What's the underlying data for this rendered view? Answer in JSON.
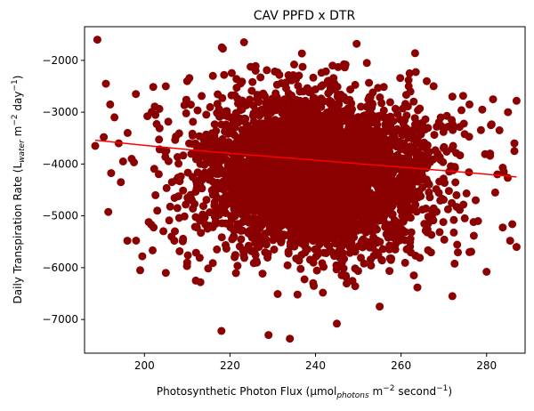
{
  "chart_data": {
    "type": "scatter",
    "title": "CAV PPFD x DTR",
    "xlabel": {
      "main": "Photosynthetic Photon Flux (μmol",
      "sub": "photons",
      "mid": " m",
      "sup1": "−2",
      "tail": " second",
      "sup2": "−1",
      "end": ")"
    },
    "ylabel": {
      "main": "Daily Transpiration Rate (L",
      "sub": "water",
      "mid": " m",
      "sup1": "−2",
      "tail": " day",
      "sup2": "−1",
      "end": ")"
    },
    "xlim": [
      186,
      289
    ],
    "ylim": [
      -7650,
      -1350
    ],
    "xticks": [
      200,
      220,
      240,
      260,
      280
    ],
    "yticks": [
      -7000,
      -6000,
      -5000,
      -4000,
      -3000,
      -2000
    ],
    "xtick_labels": [
      "200",
      "220",
      "240",
      "260",
      "280"
    ],
    "ytick_labels": [
      "−7000",
      "−6000",
      "−5000",
      "−4000",
      "−3000",
      "−2000"
    ],
    "grid": false,
    "point_color": "#8b0000",
    "line_color": "#ff0000",
    "cluster": {
      "x_mean": 240,
      "x_sd": 14,
      "y_mean": -4200,
      "y_sd": 750,
      "count": 3800
    },
    "outliers": [
      [
        189,
        -1600
      ],
      [
        188.5,
        -3650
      ],
      [
        191,
        -2450
      ],
      [
        190.5,
        -3480
      ],
      [
        194,
        -3600
      ],
      [
        194.5,
        -4350
      ],
      [
        195,
        -3950
      ],
      [
        196,
        -5480
      ],
      [
        197,
        -3900
      ],
      [
        199,
        -6050
      ],
      [
        199.5,
        -5780
      ],
      [
        201,
        -5120
      ],
      [
        203,
        -4900
      ],
      [
        205,
        -6100
      ],
      [
        207,
        -5480
      ],
      [
        210,
        -5900
      ],
      [
        212,
        -6250
      ],
      [
        218,
        -7220
      ],
      [
        229,
        -7300
      ],
      [
        234,
        -7370
      ],
      [
        245,
        -7080
      ],
      [
        255,
        -6750
      ],
      [
        263,
        -6150
      ],
      [
        272,
        -6550
      ],
      [
        276,
        -5700
      ],
      [
        278,
        -5100
      ],
      [
        280,
        -6080
      ],
      [
        282,
        -4550
      ],
      [
        282.5,
        -4200
      ],
      [
        285.5,
        -5480
      ],
      [
        286.5,
        -3600
      ],
      [
        287,
        -2780
      ],
      [
        286.5,
        -3750
      ],
      [
        287,
        -5600
      ],
      [
        283,
        -3350
      ],
      [
        281,
        -3250
      ],
      [
        279,
        -2950
      ],
      [
        276,
        -2850
      ],
      [
        272,
        -2700
      ],
      [
        266,
        -2400
      ],
      [
        262,
        -2250
      ],
      [
        252,
        -2050
      ],
      [
        244,
        -2100
      ],
      [
        235,
        -2080
      ],
      [
        226,
        -2200
      ],
      [
        216,
        -2300
      ],
      [
        210,
        -2400
      ],
      [
        205,
        -2500
      ],
      [
        198,
        -2650
      ],
      [
        193,
        -3100
      ],
      [
        192,
        -2850
      ],
      [
        284,
        -4150
      ],
      [
        285,
        -3000
      ],
      [
        281.5,
        -2750
      ]
    ],
    "fit_line": {
      "x": [
        188.5,
        200,
        215,
        230,
        245,
        260,
        275,
        287
      ],
      "y": [
        -3540,
        -3640,
        -3760,
        -3860,
        -3960,
        -4060,
        -4160,
        -4250
      ]
    }
  }
}
